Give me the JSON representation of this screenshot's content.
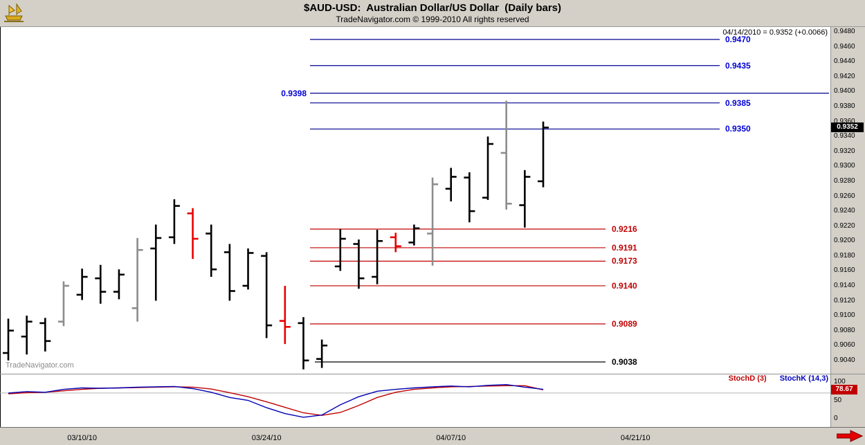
{
  "header": {
    "title": "$AUD-USD:  Australian Dollar/US Dollar  (Daily bars)",
    "subtitle": "TradeNavigator.com © 1999-2010 All rights reserved",
    "logo": "tradenavigator-gold-emblem"
  },
  "annotation": "04/14/2010 = 0.9352 (+0.0066)",
  "watermark": "TradeNavigator.com",
  "price_box": "0.9352",
  "stoch_box": "78.67",
  "legend": {
    "stochd": "StochD (3)",
    "stochk": "StochK (14,3)"
  },
  "colors": {
    "bar_black": "#000000",
    "bar_gray": "#8c8c8c",
    "bar_red": "#e80000",
    "level_blue": "#000090",
    "level_red": "#c00000",
    "level_black": "#000000",
    "stochd_line": "#c00000",
    "stochk_line": "#0000b4",
    "axis_bg": "#d4d0c8",
    "blue_label": "#0000d8"
  },
  "chart_data": {
    "type": "ohlc",
    "title": "$AUD-USD Australian Dollar/US Dollar (Daily bars)",
    "price_axis": {
      "min": 0.904,
      "max": 0.948,
      "step": 0.002,
      "side": "right"
    },
    "last": {
      "date": "04/14/2010",
      "close": 0.9352,
      "change": "+0.0066"
    },
    "bars": [
      {
        "date": "03/04/10",
        "o": 0.905,
        "h": 0.9096,
        "l": 0.904,
        "c": 0.908,
        "color": "black"
      },
      {
        "date": "03/05/10",
        "o": 0.9072,
        "h": 0.91,
        "l": 0.9048,
        "c": 0.9092,
        "color": "black"
      },
      {
        "date": "03/08/10",
        "o": 0.909,
        "h": 0.9097,
        "l": 0.9052,
        "c": 0.9066,
        "color": "black"
      },
      {
        "date": "03/09/10",
        "o": 0.9092,
        "h": 0.9146,
        "l": 0.9086,
        "c": 0.914,
        "color": "gray"
      },
      {
        "date": "03/10/10",
        "o": 0.9128,
        "h": 0.9163,
        "l": 0.9121,
        "c": 0.9152,
        "color": "black"
      },
      {
        "date": "03/11/10",
        "o": 0.915,
        "h": 0.9168,
        "l": 0.9116,
        "c": 0.9132,
        "color": "black"
      },
      {
        "date": "03/12/10",
        "o": 0.9132,
        "h": 0.9162,
        "l": 0.9122,
        "c": 0.9155,
        "color": "black"
      },
      {
        "date": "03/15/10",
        "o": 0.911,
        "h": 0.9204,
        "l": 0.9092,
        "c": 0.9188,
        "color": "gray"
      },
      {
        "date": "03/16/10",
        "o": 0.919,
        "h": 0.9222,
        "l": 0.912,
        "c": 0.9204,
        "color": "black"
      },
      {
        "date": "03/17/10",
        "o": 0.9205,
        "h": 0.9256,
        "l": 0.9196,
        "c": 0.9247,
        "color": "black"
      },
      {
        "date": "03/18/10",
        "o": 0.9237,
        "h": 0.9244,
        "l": 0.9176,
        "c": 0.9203,
        "color": "red"
      },
      {
        "date": "03/19/10",
        "o": 0.921,
        "h": 0.9222,
        "l": 0.9152,
        "c": 0.9162,
        "color": "black"
      },
      {
        "date": "03/22/10",
        "o": 0.9185,
        "h": 0.9196,
        "l": 0.912,
        "c": 0.9133,
        "color": "black"
      },
      {
        "date": "03/23/10",
        "o": 0.914,
        "h": 0.919,
        "l": 0.9135,
        "c": 0.9184,
        "color": "black"
      },
      {
        "date": "03/24/10",
        "o": 0.918,
        "h": 0.9185,
        "l": 0.907,
        "c": 0.9087,
        "color": "black"
      },
      {
        "date": "03/25/10",
        "o": 0.9093,
        "h": 0.914,
        "l": 0.9062,
        "c": 0.9085,
        "color": "red"
      },
      {
        "date": "03/26/10",
        "o": 0.909,
        "h": 0.9098,
        "l": 0.9028,
        "c": 0.904,
        "color": "black"
      },
      {
        "date": "03/29/10",
        "o": 0.9042,
        "h": 0.9068,
        "l": 0.903,
        "c": 0.906,
        "color": "black"
      },
      {
        "date": "03/30/10",
        "o": 0.9166,
        "h": 0.9216,
        "l": 0.916,
        "c": 0.9203,
        "color": "black"
      },
      {
        "date": "03/31/10",
        "o": 0.9196,
        "h": 0.9202,
        "l": 0.9136,
        "c": 0.915,
        "color": "black"
      },
      {
        "date": "04/01/10",
        "o": 0.9152,
        "h": 0.9215,
        "l": 0.9142,
        "c": 0.92,
        "color": "black"
      },
      {
        "date": "04/02/10",
        "o": 0.9205,
        "h": 0.9211,
        "l": 0.9185,
        "c": 0.9193,
        "color": "red"
      },
      {
        "date": "04/05/10",
        "o": 0.9198,
        "h": 0.9222,
        "l": 0.9194,
        "c": 0.9217,
        "color": "black"
      },
      {
        "date": "04/06/10",
        "o": 0.921,
        "h": 0.9285,
        "l": 0.9167,
        "c": 0.9276,
        "color": "gray"
      },
      {
        "date": "04/07/10",
        "o": 0.927,
        "h": 0.9298,
        "l": 0.9253,
        "c": 0.9286,
        "color": "black"
      },
      {
        "date": "04/08/10",
        "o": 0.9285,
        "h": 0.9292,
        "l": 0.9225,
        "c": 0.924,
        "color": "black"
      },
      {
        "date": "04/09/10",
        "o": 0.9258,
        "h": 0.934,
        "l": 0.9255,
        "c": 0.933,
        "color": "black"
      },
      {
        "date": "04/12/10",
        "o": 0.9318,
        "h": 0.9388,
        "l": 0.9242,
        "c": 0.925,
        "color": "gray"
      },
      {
        "date": "04/13/10",
        "o": 0.9248,
        "h": 0.9295,
        "l": 0.9218,
        "c": 0.9286,
        "color": "black"
      },
      {
        "date": "04/14/10",
        "o": 0.928,
        "h": 0.936,
        "l": 0.9272,
        "c": 0.9352,
        "color": "black"
      }
    ],
    "levels": [
      {
        "value": 0.947,
        "color": "blue",
        "label_side": "right"
      },
      {
        "value": 0.9435,
        "color": "blue",
        "label_side": "right"
      },
      {
        "value": 0.9398,
        "color": "blue",
        "label_side": "left"
      },
      {
        "value": 0.9385,
        "color": "blue",
        "label_side": "right"
      },
      {
        "value": 0.935,
        "color": "blue",
        "label_side": "right"
      },
      {
        "value": 0.9216,
        "color": "red",
        "label_side": "right"
      },
      {
        "value": 0.9191,
        "color": "red",
        "label_side": "right"
      },
      {
        "value": 0.9173,
        "color": "red",
        "label_side": "right"
      },
      {
        "value": 0.914,
        "color": "red",
        "label_side": "right"
      },
      {
        "value": 0.9089,
        "color": "red",
        "label_side": "right"
      },
      {
        "value": 0.9038,
        "color": "black",
        "label_side": "right"
      }
    ],
    "indicator": {
      "name_d": "StochD (3)",
      "name_k": "StochK (14,3)",
      "axis_ticks": [
        100,
        50,
        0
      ],
      "gridline": 70,
      "current_d": 78.67,
      "stochk": [
        70,
        74,
        72,
        80,
        84,
        83,
        84,
        86,
        87,
        88,
        82,
        72,
        58,
        50,
        30,
        14,
        4,
        10,
        38,
        60,
        75,
        80,
        84,
        87,
        89,
        87,
        91,
        93,
        86,
        80
      ],
      "stochd": [
        68,
        71,
        72,
        76,
        80,
        83,
        84,
        85,
        86,
        87,
        86,
        81,
        71,
        60,
        46,
        31,
        16,
        9,
        17,
        36,
        58,
        72,
        80,
        84,
        87,
        88,
        89,
        90,
        90,
        78.67
      ]
    },
    "x_axis_labels": [
      {
        "text": "03/10/10",
        "bar": 4
      },
      {
        "text": "03/24/10",
        "bar": 14
      },
      {
        "text": "04/07/10",
        "bar": 24
      },
      {
        "text": "04/21/10",
        "bar": 34
      }
    ]
  }
}
